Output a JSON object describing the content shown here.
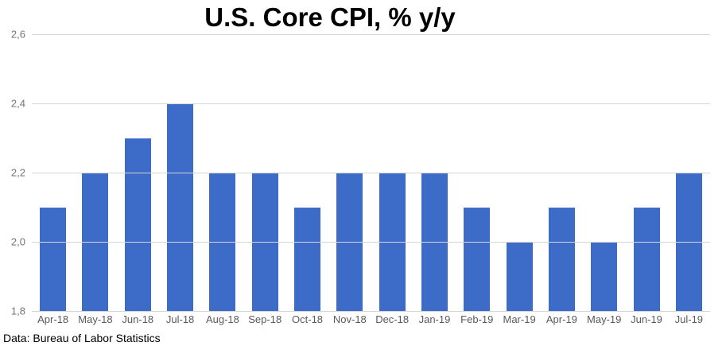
{
  "chart_data": {
    "type": "bar",
    "title": "U.S. Core CPI, % y/y",
    "categories": [
      "Apr-18",
      "May-18",
      "Jun-18",
      "Jul-18",
      "Aug-18",
      "Sep-18",
      "Oct-18",
      "Nov-18",
      "Dec-18",
      "Jan-19",
      "Feb-19",
      "Mar-19",
      "Apr-19",
      "May-19",
      "Jun-19",
      "Jul-19"
    ],
    "values": [
      2.1,
      2.2,
      2.3,
      2.4,
      2.2,
      2.2,
      2.1,
      2.2,
      2.2,
      2.2,
      2.1,
      2.0,
      2.1,
      2.0,
      2.1,
      2.2
    ],
    "xlabel": "",
    "ylabel": "",
    "ylim": [
      1.8,
      2.6
    ],
    "y_ticks": [
      {
        "value": 2.6,
        "label": "2,6"
      },
      {
        "value": 2.4,
        "label": "2,4"
      },
      {
        "value": 2.2,
        "label": "2,2"
      },
      {
        "value": 2.0,
        "label": "2,0"
      },
      {
        "value": 1.8,
        "label": "1,8"
      }
    ],
    "decimal_separator": ",",
    "grid": true,
    "legend_position": "none",
    "colors": {
      "bar": "#3d6cc8",
      "gridline": "#d6d6d6",
      "y_tick_text": "#757575",
      "x_tick_text": "#595959",
      "title_text": "#000000",
      "background": "#ffffff"
    },
    "source_note": "Data: Bureau of Labor Statistics"
  }
}
